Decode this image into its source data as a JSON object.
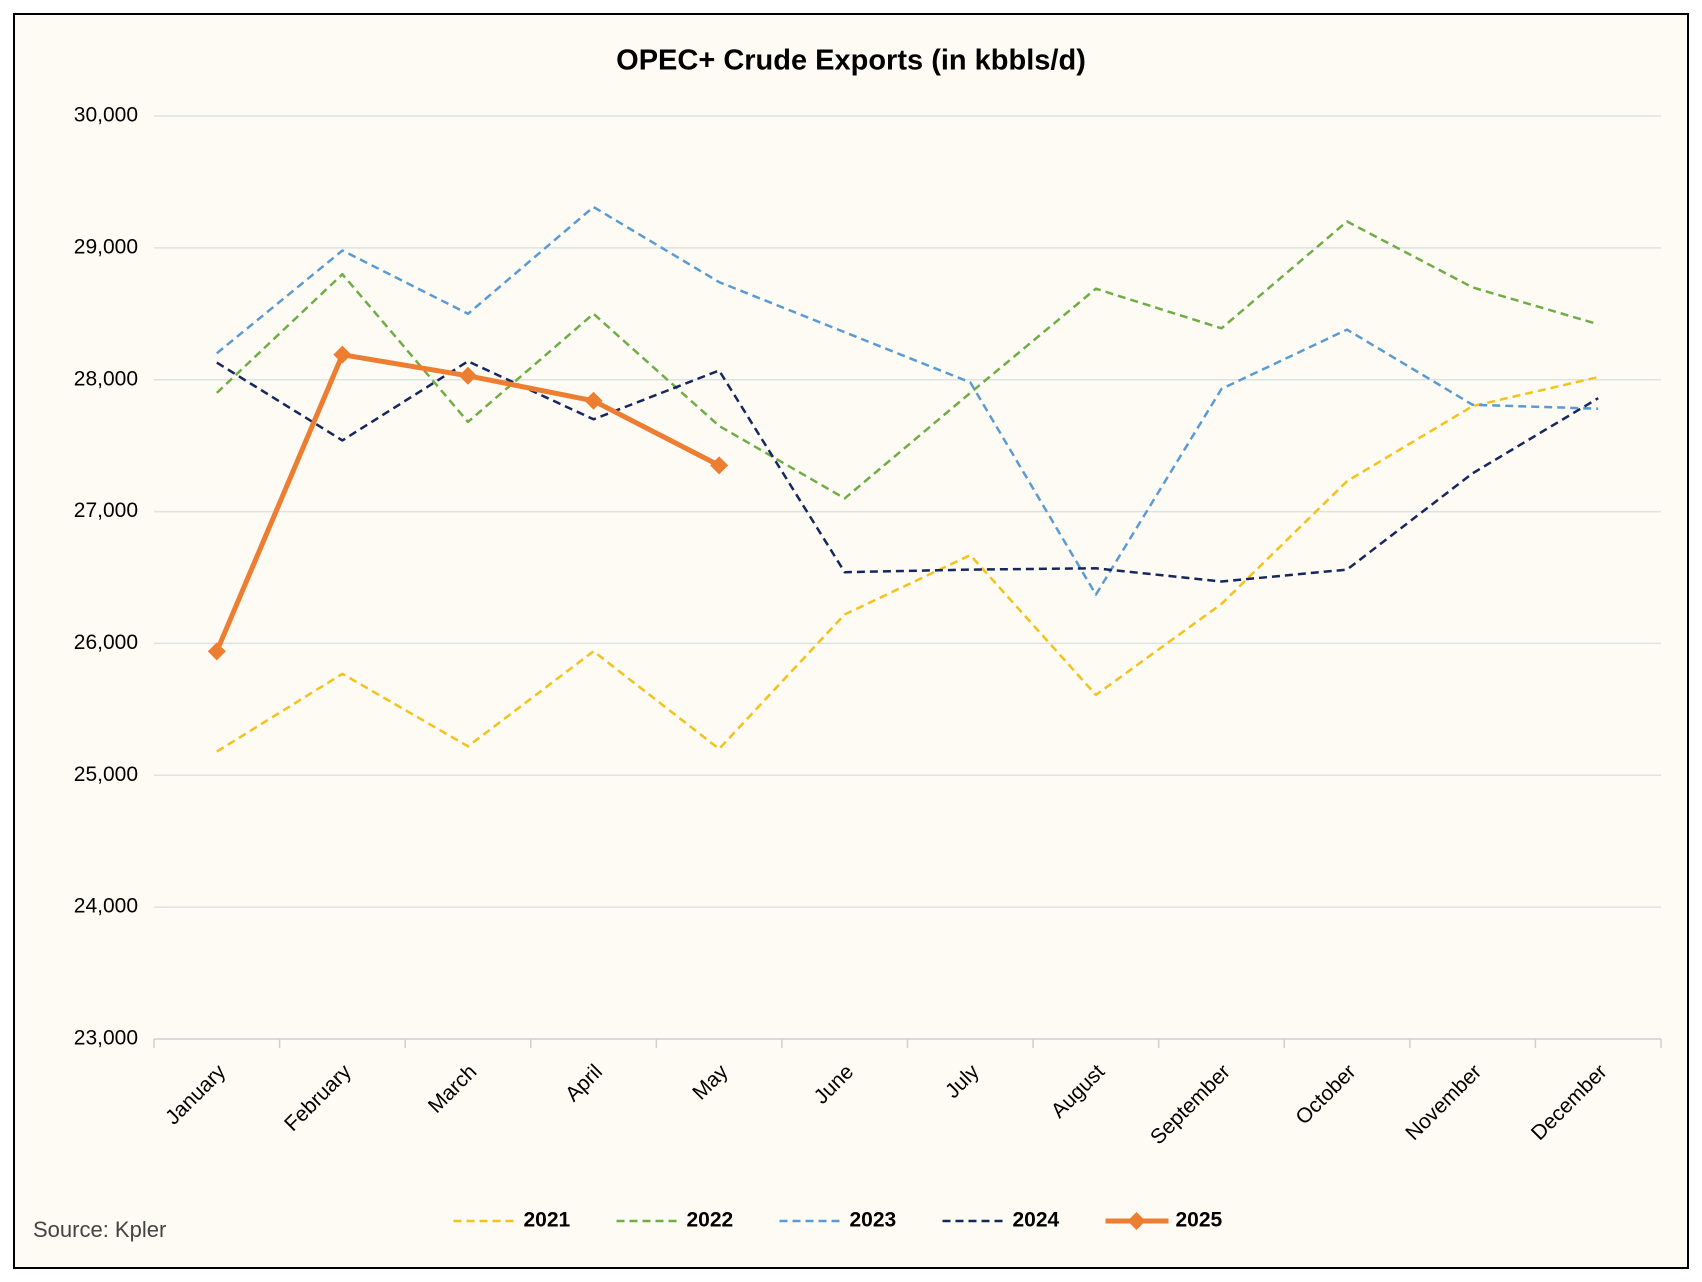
{
  "chart_data": {
    "type": "line",
    "title": "OPEC+ Crude Exports (in kbbls/d)",
    "source": "Source: Kpler",
    "categories": [
      "January",
      "February",
      "March",
      "April",
      "May",
      "June",
      "July",
      "August",
      "September",
      "October",
      "November",
      "December"
    ],
    "ylim": [
      23000,
      30000
    ],
    "yticks": [
      {
        "value": 23000,
        "label": "23,000"
      },
      {
        "value": 24000,
        "label": "24,000"
      },
      {
        "value": 25000,
        "label": "25,000"
      },
      {
        "value": 26000,
        "label": "26,000"
      },
      {
        "value": 27000,
        "label": "27,000"
      },
      {
        "value": 28000,
        "label": "28,000"
      },
      {
        "value": 29000,
        "label": "29,000"
      },
      {
        "value": 30000,
        "label": "30,000"
      }
    ],
    "grid": true,
    "legend": "bottom",
    "series": [
      {
        "name": "2021",
        "color": "#f5c21b",
        "dashed": true,
        "values": [
          25180,
          25770,
          25220,
          25940,
          25200,
          26220,
          26670,
          25610,
          26300,
          27230,
          27800,
          28020
        ]
      },
      {
        "name": "2022",
        "color": "#70ad47",
        "dashed": true,
        "values": [
          27900,
          28800,
          27680,
          28500,
          27650,
          27100,
          27900,
          28690,
          28390,
          29200,
          28700,
          28420
        ]
      },
      {
        "name": "2023",
        "color": "#5b9bd5",
        "dashed": true,
        "values": [
          28200,
          28980,
          28500,
          29310,
          28740,
          28360,
          27980,
          26370,
          27930,
          28380,
          27810,
          27780
        ]
      },
      {
        "name": "2024",
        "color": "#15275e",
        "dashed": true,
        "values": [
          28130,
          27540,
          28140,
          27700,
          28070,
          26540,
          26560,
          26570,
          26470,
          26560,
          27290,
          27860
        ]
      },
      {
        "name": "2025",
        "color": "#ed7d31",
        "dashed": false,
        "marker": "diamond",
        "values": [
          25940,
          28190,
          28030,
          27840,
          27350,
          null,
          null,
          null,
          null,
          null,
          null,
          null
        ]
      }
    ]
  }
}
